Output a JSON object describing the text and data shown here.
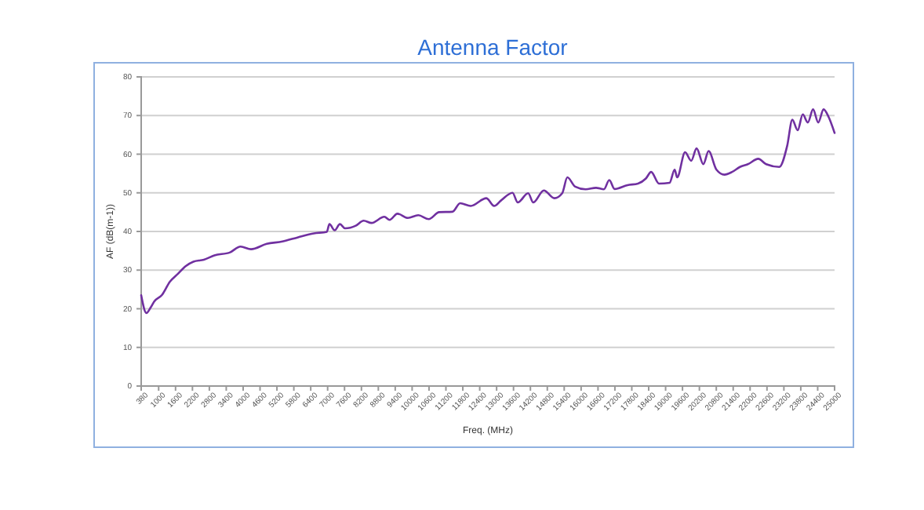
{
  "chart_data": {
    "type": "line",
    "title": "Antenna Factor",
    "xlabel": "Freq. (MHz)",
    "ylabel": "AF (dB(m-1))",
    "x": [
      380,
      565,
      714,
      843,
      1122,
      1400,
      1680,
      1958,
      2235,
      2608,
      2980,
      3537,
      3908,
      4280,
      4836,
      5393,
      5950,
      6507,
      6971,
      7064,
      7250,
      7436,
      7620,
      8000,
      8280,
      8560,
      9014,
      9200,
      9478,
      9850,
      10220,
      10590,
      10963,
      11430,
      11705,
      12080,
      12634,
      12912,
      13153,
      13565,
      13750,
      14120,
      14300,
      14677,
      15050,
      15330,
      15512,
      15790,
      16160,
      16533,
      16810,
      17000,
      17190,
      17647,
      18020,
      18300,
      18487,
      18765,
      19140,
      19322,
      19410,
      19693,
      19910,
      20100,
      20340,
      20527,
      20806,
      21090,
      21360,
      21641,
      21920,
      22290,
      22570,
      23036,
      23315,
      23500,
      23690,
      23870,
      24050,
      24236,
      24420,
      24610,
      24790,
      25000
    ],
    "series": [
      {
        "color": "#7030a0",
        "values": [
          23.5,
          18.9,
          20.3,
          21.9,
          23.6,
          27,
          29,
          31,
          32.2,
          32.7,
          33.8,
          34.6,
          36.1,
          35.4,
          36.8,
          37.4,
          38.5,
          39.5,
          39.9,
          41.9,
          40.3,
          41.9,
          40.8,
          41.5,
          42.8,
          42.2,
          43.8,
          43,
          44.6,
          43.5,
          44.2,
          43.2,
          45,
          45.1,
          47.3,
          46.6,
          48.6,
          46.6,
          48,
          50,
          47.5,
          49.9,
          47.5,
          50.6,
          48.6,
          49.9,
          54,
          51.6,
          50.9,
          51.3,
          50.9,
          53.3,
          51,
          52,
          52.4,
          53.7,
          55.4,
          52.4,
          52.6,
          56,
          54,
          60.5,
          58.3,
          61.5,
          57.4,
          60.8,
          56,
          54.7,
          55.4,
          56.7,
          57.4,
          58.8,
          57.4,
          56.7,
          62.1,
          68.9,
          66.2,
          70.3,
          68.2,
          71.6,
          68.2,
          71.6,
          69.6,
          65.5
        ]
      }
    ],
    "xlim": [
      380,
      25000
    ],
    "xticks": [
      380,
      1000,
      1600,
      2200,
      2800,
      3400,
      4000,
      4600,
      5200,
      5800,
      6400,
      7000,
      7600,
      8200,
      8800,
      9400,
      10000,
      10600,
      11200,
      11800,
      12400,
      13000,
      13600,
      14200,
      14800,
      15400,
      16000,
      16600,
      17200,
      17800,
      18400,
      19000,
      19600,
      20200,
      20800,
      21400,
      22000,
      22600,
      23200,
      23800,
      24400,
      25000
    ],
    "ylim": [
      0,
      80
    ],
    "yticks": [
      0,
      10,
      20,
      30,
      40,
      50,
      60,
      70,
      80
    ],
    "grid": "y",
    "marker": "none",
    "line_style": "solid"
  }
}
